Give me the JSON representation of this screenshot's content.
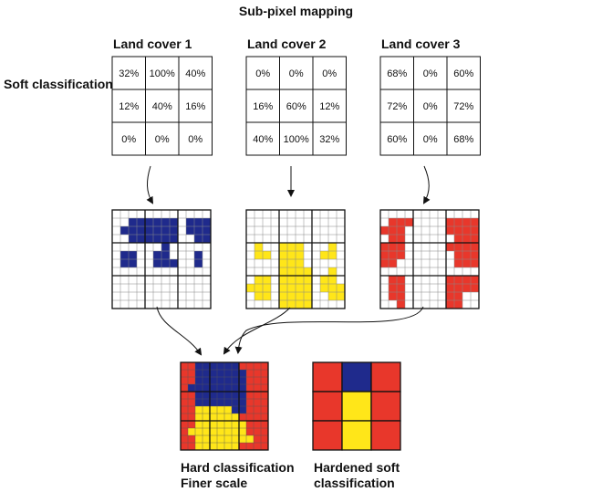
{
  "title": "Sub-pixel mapping",
  "soft_classification_label": "Soft classification",
  "land_covers": [
    {
      "title": "Land cover 1",
      "values": [
        [
          "32%",
          "100%",
          "40%"
        ],
        [
          "12%",
          "40%",
          "16%"
        ],
        [
          "0%",
          "0%",
          "0%"
        ]
      ],
      "color": "#1f2a8c"
    },
    {
      "title": "Land cover 2",
      "values": [
        [
          "0%",
          "0%",
          "0%"
        ],
        [
          "16%",
          "60%",
          "12%"
        ],
        [
          "40%",
          "100%",
          "32%"
        ]
      ],
      "color": "#ffe619"
    },
    {
      "title": "Land cover 3",
      "values": [
        [
          "68%",
          "0%",
          "60%"
        ],
        [
          "72%",
          "0%",
          "72%"
        ],
        [
          "60%",
          "0%",
          "68%"
        ]
      ],
      "color": "#e8372b"
    }
  ],
  "hard_caption": [
    "Hard classification",
    "Finer scale"
  ],
  "hardened_caption": [
    "Hardened soft",
    "classification"
  ],
  "hardened_grid": [
    [
      "red",
      "blue",
      "red"
    ],
    [
      "red",
      "yellow",
      "red"
    ],
    [
      "red",
      "yellow",
      "red"
    ]
  ],
  "colors": {
    "blue": "#1f2a8c",
    "yellow": "#ffe619",
    "red": "#e8372b",
    "grid": "#222222",
    "fine_grid": "#888888"
  }
}
